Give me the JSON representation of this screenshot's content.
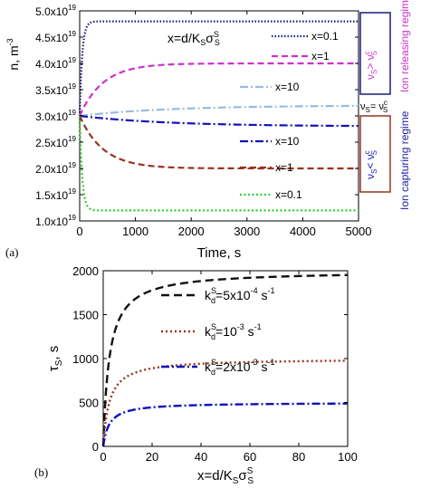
{
  "chart_data": [
    {
      "panel_label": "(a)",
      "type": "line",
      "xlabel": "Time, s",
      "ylabel": "n, m",
      "ylabel_sup": "-3",
      "xlim": [
        0,
        5000
      ],
      "ylim": [
        1e+19,
        5e+19
      ],
      "xticks": [
        0,
        1000,
        2000,
        3000,
        4000,
        5000
      ],
      "xtick_labels": [
        "0",
        "1000",
        "2000",
        "3000",
        "4000",
        "5000"
      ],
      "yticks": [
        1e+19,
        1.5e+19,
        2e+19,
        2.5e+19,
        3e+19,
        3.5e+19,
        4e+19,
        4.5e+19,
        5e+19
      ],
      "ytick_mantissa": [
        "1.0x10",
        "1.5x10",
        "2.0x10",
        "2.5x10",
        "3.0x10",
        "3.5x10",
        "4.0x10",
        "4.5x10",
        "5.0x10"
      ],
      "ytick_exp": "19",
      "x_param": {
        "main": "x=d/K",
        "sub1": "S",
        "sig": "σ",
        "sub2": "S",
        "sup2": "S"
      },
      "equal_label": {
        "nu": "ν",
        "sub1": "S",
        "eq": "= ν",
        "sub2": "S",
        "sup2": "c"
      },
      "regimes": [
        {
          "text": "Ion releasing regime",
          "color": "#cc33cc",
          "inequality": "ν",
          "sub1": "S",
          "op": "> ν",
          "sub2": "S",
          "sup2": "c",
          "box_color": "#1a1a80"
        },
        {
          "text": "Ion capturing regime",
          "color": "#2222aa",
          "inequality": "ν",
          "sub1": "S",
          "op": "< ν",
          "sub2": "S",
          "sup2": "c",
          "box_color": "#993322"
        }
      ],
      "series": [
        {
          "name": "x=0.1",
          "group": "release",
          "color": "#1a1a80",
          "dash": "1.5,2",
          "n0": 3e+19,
          "ninf": 4.8e+19,
          "tau": 45
        },
        {
          "name": "x=1",
          "group": "release",
          "color": "#cc33cc",
          "dash": "7,4",
          "n0": 3e+19,
          "ninf": 4e+19,
          "tau": 420
        },
        {
          "name": "x=10",
          "group": "release",
          "color": "#99bbdd",
          "dash": "9,3,2,3",
          "n0": 3e+19,
          "ninf": 3.2e+19,
          "tau": 1600
        },
        {
          "name": "x=10",
          "group": "capture",
          "color": "#1111bb",
          "dash": "9,3,2,3",
          "n0": 3e+19,
          "ninf": 2.8e+19,
          "tau": 1600
        },
        {
          "name": "x=1",
          "group": "capture",
          "color": "#993322",
          "dash": "7,4",
          "n0": 3e+19,
          "ninf": 2e+19,
          "tau": 420
        },
        {
          "name": "x=0.1",
          "group": "capture",
          "color": "#33cc33",
          "dash": "2,2.5",
          "n0": 3e+19,
          "ninf": 1.2e+19,
          "tau": 45
        }
      ]
    },
    {
      "panel_label": "(b)",
      "type": "line",
      "xlabel": "x=d/K",
      "xlabel_sub1": "S",
      "xlabel_sig": "σ",
      "xlabel_sub2": "S",
      "xlabel_sup2": "S",
      "ylabel": "τ",
      "ylabel_sub": "S",
      "ylabel_tail": ", s",
      "xlim": [
        0,
        100
      ],
      "ylim": [
        0,
        2000
      ],
      "xticks": [
        0,
        20,
        40,
        60,
        80,
        100
      ],
      "xtick_labels": [
        "0",
        "20",
        "40",
        "60",
        "80",
        "100"
      ],
      "yticks": [
        0,
        500,
        1000,
        1500,
        2000
      ],
      "ytick_labels": [
        "0",
        "500",
        "1000",
        "1500",
        "2000"
      ],
      "series": [
        {
          "k": "k",
          "sub": "d",
          "sup": "S",
          "val": "=5x10",
          "exp": "-4",
          "unit": " s",
          "unit_exp": "-1",
          "color": "#111111",
          "dash": "9,5",
          "tmax": 2000
        },
        {
          "k": "k",
          "sub": "d",
          "sup": "S",
          "val": "=10",
          "exp": "-3",
          "unit": " s",
          "unit_exp": "-1",
          "color": "#993322",
          "dash": "2,3",
          "tmax": 1000
        },
        {
          "k": "k",
          "sub": "d",
          "sup": "S",
          "val": "=2x10",
          "exp": "-3",
          "unit": " s",
          "unit_exp": "-1",
          "color": "#1111bb",
          "dash": "9,3,2,3",
          "tmax": 500
        }
      ]
    }
  ]
}
